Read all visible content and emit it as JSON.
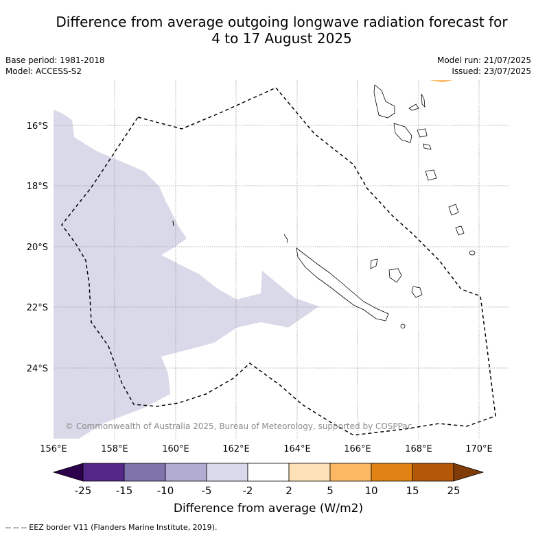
{
  "title": {
    "line1": "Difference from average outgoing longwave radiation forecast for",
    "line2": "4 to 17 August 2025"
  },
  "meta": {
    "base_period": "Base period: 1981-2018",
    "model": "Model: ACCESS-S2",
    "model_run": "Model run: 21/07/2025",
    "issued": "Issued: 23/07/2025"
  },
  "map": {
    "lat_labels": [
      "16°S",
      "18°S",
      "20°S",
      "22°S",
      "24°S"
    ],
    "lon_labels": [
      "156°E",
      "158°E",
      "160°E",
      "162°E",
      "164°E",
      "166°E",
      "168°E",
      "170°E"
    ],
    "copyright": "© Commonwealth of Australia 2025, Bureau of Meteorology, supported by COSPPac",
    "shading_color": "#d9d9e9",
    "eez_color": "#000000"
  },
  "colorbar": {
    "label": "Difference from average (W/m2)",
    "ticks": [
      "-25",
      "-15",
      "-10",
      "-5",
      "-2",
      "2",
      "5",
      "10",
      "15",
      "25"
    ],
    "colors": [
      "#2d004b",
      "#542788",
      "#8073ac",
      "#b2abd2",
      "#d8daeb",
      "#ffffff",
      "#fee0b6",
      "#fdb863",
      "#e08214",
      "#b35806",
      "#7f3b08"
    ]
  },
  "footer": {
    "legend": "--  --  -- EEZ border V11 (Flanders Marine Institute, 2019)."
  }
}
